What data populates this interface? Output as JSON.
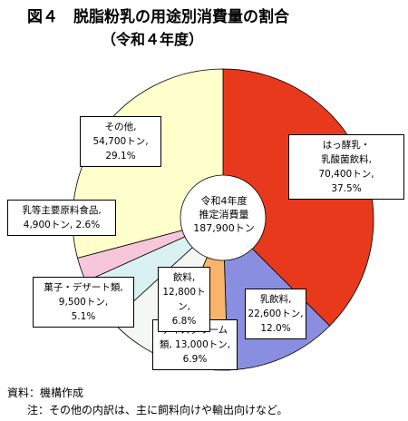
{
  "title": "図４　脱脂粉乳の用途別消費量の割合",
  "subtitle": "（令和４年度）",
  "chart_data": {
    "type": "donut",
    "categories": [
      "はっ酵乳・\n乳酸菌飲料,",
      "乳飲料,",
      "アイスクリーム\n類,",
      "飲料,",
      "菓子・デザート類,",
      "乳等主要原料食品,",
      "その他,"
    ],
    "values": [
      70400,
      22600,
      13000,
      12800,
      9500,
      4900,
      54700
    ],
    "value_labels": [
      "70,400トン,",
      "22,600トン,",
      "13,000トン,",
      "12,800トン,",
      "9,500トン,",
      "4,900トン,",
      "54,700トン,"
    ],
    "shares": [
      37.5,
      12.0,
      6.9,
      6.8,
      5.1,
      2.6,
      29.1
    ],
    "share_labels": [
      "37.5%",
      "12.0%",
      "6.9%",
      "6.8%",
      "5.1%",
      "2.6%",
      "29.1%"
    ],
    "colors": [
      "#e8391d",
      "#8a8ee0",
      "#f7b46a",
      "#f3f8f4",
      "#d9f1f1",
      "#f6c7da",
      "#ffffcc"
    ],
    "center_label": "令和4年度\n推定消費量",
    "total": 187900,
    "total_label": "187,900トン"
  },
  "notes": [
    "資料：機構作成",
    "注：その他の内訳は、主に飼料向けや輸出向けなど。"
  ]
}
